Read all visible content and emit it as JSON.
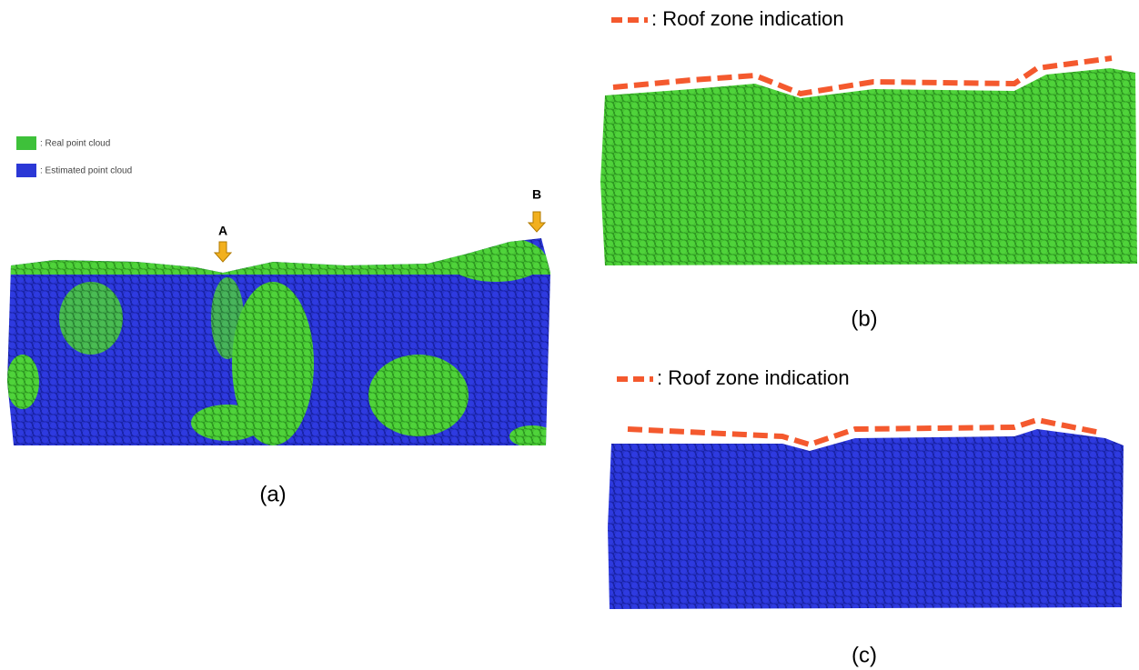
{
  "panel_a": {
    "legend": [
      ": Real point cloud",
      ": Estimated point cloud"
    ],
    "markers": [
      "A",
      "B"
    ],
    "caption": "(a)"
  },
  "panel_b": {
    "legend": ": Roof zone indication",
    "caption": "(b)"
  },
  "panel_c": {
    "legend": ": Roof zone indication",
    "caption": "(c)"
  }
}
